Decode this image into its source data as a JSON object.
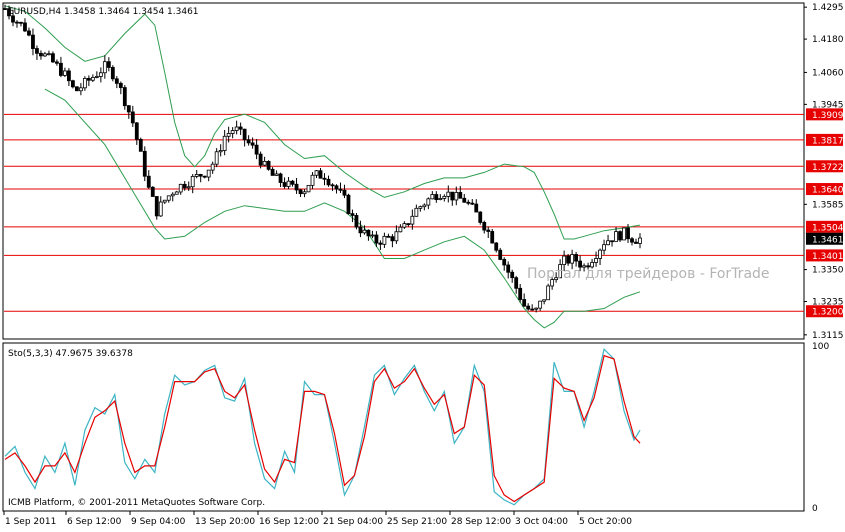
{
  "main_chart": {
    "title": "EURUSD,H4  1.3458 1.3464 1.3454 1.3461",
    "watermark": "Портал для трейдеров - ForTrade"
  },
  "osc_chart": {
    "title": "Sto(5,3,3) 47.9675 39.6378"
  },
  "copyright": "ICMB Platform, © 2001-2011 MetaQuotes Software Corp.",
  "colors": {
    "candle": "#000000",
    "bollinger": "#2e9e4f",
    "horizontal_lines": "#e60000",
    "stoch_main": "#3cb4c4",
    "stoch_signal": "#e60000"
  },
  "chart_data": [
    {
      "type": "candlestick",
      "symbol": "EURUSD",
      "timeframe": "H4",
      "ohlc_current": {
        "open": 1.3458,
        "high": 1.3464,
        "low": 1.3454,
        "close": 1.3461
      },
      "ylim": [
        1.31,
        1.431
      ],
      "y_ticks": [
        "1.4295",
        "1.4180",
        "1.4060",
        "1.3945",
        "1.3585",
        "1.3350",
        "1.3235",
        "1.3115"
      ],
      "price_levels": [
        "1.3909",
        "1.3817",
        "1.3722",
        "1.3640",
        "1.3504",
        "1.3401",
        "1.3200"
      ],
      "current_price": "1.3461",
      "x_ticks": [
        "1 Sep 2011",
        "6 Sep 12:00",
        "9 Sep 04:00",
        "13 Sep 20:00",
        "16 Sep 12:00",
        "21 Sep 04:00",
        "25 Sep 21:00",
        "28 Sep 12:00",
        "3 Oct 04:00",
        "5 Oct 20:00"
      ],
      "overlay": "Bollinger Bands",
      "close_path": [
        [
          0,
          1.429
        ],
        [
          5,
          1.425
        ],
        [
          10,
          1.422
        ],
        [
          15,
          1.415
        ],
        [
          20,
          1.412
        ],
        [
          25,
          1.409
        ],
        [
          30,
          1.405
        ],
        [
          35,
          1.399
        ],
        [
          40,
          1.402
        ],
        [
          45,
          1.405
        ],
        [
          50,
          1.408
        ],
        [
          55,
          1.405
        ],
        [
          60,
          1.396
        ],
        [
          64,
          1.388
        ],
        [
          68,
          1.376
        ],
        [
          72,
          1.364
        ],
        [
          76,
          1.356
        ],
        [
          80,
          1.36
        ],
        [
          85,
          1.364
        ],
        [
          90,
          1.366
        ],
        [
          95,
          1.368
        ],
        [
          100,
          1.37
        ],
        [
          105,
          1.374
        ],
        [
          110,
          1.383
        ],
        [
          115,
          1.386
        ],
        [
          120,
          1.382
        ],
        [
          125,
          1.378
        ],
        [
          130,
          1.372
        ],
        [
          135,
          1.368
        ],
        [
          140,
          1.366
        ],
        [
          145,
          1.364
        ],
        [
          150,
          1.364
        ],
        [
          155,
          1.369
        ],
        [
          160,
          1.369
        ],
        [
          165,
          1.365
        ],
        [
          170,
          1.36
        ],
        [
          175,
          1.352
        ],
        [
          180,
          1.348
        ],
        [
          185,
          1.345
        ],
        [
          190,
          1.346
        ],
        [
          195,
          1.347
        ],
        [
          200,
          1.35
        ],
        [
          205,
          1.356
        ],
        [
          210,
          1.359
        ],
        [
          215,
          1.362
        ],
        [
          220,
          1.363
        ],
        [
          225,
          1.361
        ],
        [
          230,
          1.36
        ],
        [
          235,
          1.356
        ],
        [
          240,
          1.351
        ],
        [
          245,
          1.345
        ],
        [
          250,
          1.337
        ],
        [
          255,
          1.33
        ],
        [
          260,
          1.322
        ],
        [
          265,
          1.319
        ],
        [
          270,
          1.325
        ],
        [
          275,
          1.333
        ],
        [
          280,
          1.338
        ],
        [
          285,
          1.339
        ],
        [
          290,
          1.336
        ],
        [
          295,
          1.34
        ],
        [
          300,
          1.345
        ],
        [
          305,
          1.347
        ],
        [
          310,
          1.348
        ],
        [
          315,
          1.346
        ],
        [
          318,
          1.3461
        ]
      ],
      "upper_band": [
        [
          0,
          1.43
        ],
        [
          10,
          1.428
        ],
        [
          20,
          1.422
        ],
        [
          30,
          1.415
        ],
        [
          40,
          1.41
        ],
        [
          50,
          1.412
        ],
        [
          60,
          1.42
        ],
        [
          70,
          1.427
        ],
        [
          75,
          1.423
        ],
        [
          80,
          1.406
        ],
        [
          85,
          1.388
        ],
        [
          90,
          1.376
        ],
        [
          95,
          1.372
        ],
        [
          100,
          1.376
        ],
        [
          105,
          1.384
        ],
        [
          110,
          1.389
        ],
        [
          120,
          1.391
        ],
        [
          130,
          1.388
        ],
        [
          140,
          1.38
        ],
        [
          150,
          1.375
        ],
        [
          160,
          1.376
        ],
        [
          170,
          1.37
        ],
        [
          180,
          1.365
        ],
        [
          190,
          1.361
        ],
        [
          200,
          1.363
        ],
        [
          210,
          1.366
        ],
        [
          220,
          1.368
        ],
        [
          230,
          1.368
        ],
        [
          240,
          1.37
        ],
        [
          250,
          1.373
        ],
        [
          260,
          1.372
        ],
        [
          265,
          1.37
        ],
        [
          270,
          1.363
        ],
        [
          275,
          1.355
        ],
        [
          280,
          1.346
        ],
        [
          285,
          1.346
        ],
        [
          290,
          1.347
        ],
        [
          300,
          1.349
        ],
        [
          310,
          1.35
        ],
        [
          318,
          1.351
        ]
      ],
      "lower_band": [
        [
          20,
          1.4
        ],
        [
          30,
          1.396
        ],
        [
          40,
          1.388
        ],
        [
          50,
          1.38
        ],
        [
          60,
          1.368
        ],
        [
          70,
          1.356
        ],
        [
          75,
          1.35
        ],
        [
          80,
          1.346
        ],
        [
          90,
          1.347
        ],
        [
          100,
          1.352
        ],
        [
          110,
          1.356
        ],
        [
          120,
          1.358
        ],
        [
          130,
          1.357
        ],
        [
          140,
          1.356
        ],
        [
          150,
          1.356
        ],
        [
          160,
          1.359
        ],
        [
          170,
          1.356
        ],
        [
          180,
          1.35
        ],
        [
          190,
          1.339
        ],
        [
          200,
          1.339
        ],
        [
          210,
          1.342
        ],
        [
          220,
          1.345
        ],
        [
          230,
          1.347
        ],
        [
          240,
          1.342
        ],
        [
          250,
          1.332
        ],
        [
          260,
          1.321
        ],
        [
          265,
          1.317
        ],
        [
          270,
          1.314
        ],
        [
          275,
          1.316
        ],
        [
          280,
          1.32
        ],
        [
          290,
          1.32
        ],
        [
          300,
          1.321
        ],
        [
          310,
          1.325
        ],
        [
          318,
          1.327
        ]
      ]
    },
    {
      "type": "line",
      "title": "Sto(5,3,3) 47.9675 39.6378",
      "ylim": [
        0,
        100
      ],
      "y_ticks": [
        "100",
        "0"
      ],
      "series": [
        {
          "name": "main",
          "values": [
            [
              0,
              32
            ],
            [
              5,
              38
            ],
            [
              10,
              22
            ],
            [
              15,
              12
            ],
            [
              20,
              32
            ],
            [
              25,
              22
            ],
            [
              30,
              40
            ],
            [
              35,
              14
            ],
            [
              40,
              48
            ],
            [
              45,
              62
            ],
            [
              50,
              58
            ],
            [
              55,
              70
            ],
            [
              60,
              28
            ],
            [
              65,
              18
            ],
            [
              70,
              30
            ],
            [
              75,
              22
            ],
            [
              80,
              58
            ],
            [
              85,
              82
            ],
            [
              90,
              76
            ],
            [
              95,
              78
            ],
            [
              100,
              85
            ],
            [
              105,
              88
            ],
            [
              110,
              68
            ],
            [
              115,
              66
            ],
            [
              120,
              80
            ],
            [
              125,
              40
            ],
            [
              130,
              18
            ],
            [
              135,
              12
            ],
            [
              140,
              35
            ],
            [
              145,
              22
            ],
            [
              150,
              78
            ],
            [
              155,
              70
            ],
            [
              160,
              70
            ],
            [
              165,
              40
            ],
            [
              170,
              8
            ],
            [
              175,
              20
            ],
            [
              180,
              50
            ],
            [
              185,
              82
            ],
            [
              190,
              88
            ],
            [
              195,
              70
            ],
            [
              200,
              80
            ],
            [
              205,
              88
            ],
            [
              210,
              72
            ],
            [
              215,
              60
            ],
            [
              220,
              72
            ],
            [
              225,
              40
            ],
            [
              230,
              50
            ],
            [
              235,
              88
            ],
            [
              240,
              72
            ],
            [
              245,
              10
            ],
            [
              250,
              5
            ],
            [
              255,
              2
            ],
            [
              260,
              8
            ],
            [
              265,
              12
            ],
            [
              270,
              18
            ],
            [
              275,
              90
            ],
            [
              280,
              72
            ],
            [
              285,
              72
            ],
            [
              290,
              50
            ],
            [
              295,
              72
            ],
            [
              300,
              98
            ],
            [
              305,
              92
            ],
            [
              310,
              60
            ],
            [
              315,
              42
            ],
            [
              318,
              48
            ]
          ]
        },
        {
          "name": "signal",
          "values": [
            [
              0,
              30
            ],
            [
              5,
              34
            ],
            [
              10,
              26
            ],
            [
              15,
              16
            ],
            [
              20,
              26
            ],
            [
              25,
              26
            ],
            [
              30,
              34
            ],
            [
              35,
              22
            ],
            [
              40,
              40
            ],
            [
              45,
              56
            ],
            [
              50,
              60
            ],
            [
              55,
              66
            ],
            [
              60,
              40
            ],
            [
              65,
              22
            ],
            [
              70,
              26
            ],
            [
              75,
              26
            ],
            [
              80,
              50
            ],
            [
              85,
              78
            ],
            [
              90,
              78
            ],
            [
              95,
              78
            ],
            [
              100,
              84
            ],
            [
              105,
              86
            ],
            [
              110,
              72
            ],
            [
              115,
              68
            ],
            [
              120,
              76
            ],
            [
              125,
              48
            ],
            [
              130,
              24
            ],
            [
              135,
              16
            ],
            [
              140,
              30
            ],
            [
              145,
              28
            ],
            [
              150,
              72
            ],
            [
              155,
              72
            ],
            [
              160,
              70
            ],
            [
              165,
              46
            ],
            [
              170,
              14
            ],
            [
              175,
              20
            ],
            [
              180,
              44
            ],
            [
              185,
              78
            ],
            [
              190,
              86
            ],
            [
              195,
              74
            ],
            [
              200,
              78
            ],
            [
              205,
              86
            ],
            [
              210,
              74
            ],
            [
              215,
              64
            ],
            [
              220,
              70
            ],
            [
              225,
              46
            ],
            [
              230,
              50
            ],
            [
              235,
              82
            ],
            [
              240,
              76
            ],
            [
              245,
              20
            ],
            [
              250,
              8
            ],
            [
              255,
              4
            ],
            [
              260,
              8
            ],
            [
              265,
              12
            ],
            [
              270,
              16
            ],
            [
              275,
              80
            ],
            [
              280,
              74
            ],
            [
              285,
              72
            ],
            [
              290,
              54
            ],
            [
              295,
              68
            ],
            [
              300,
              94
            ],
            [
              305,
              92
            ],
            [
              310,
              66
            ],
            [
              315,
              44
            ],
            [
              318,
              40
            ]
          ]
        }
      ]
    }
  ]
}
